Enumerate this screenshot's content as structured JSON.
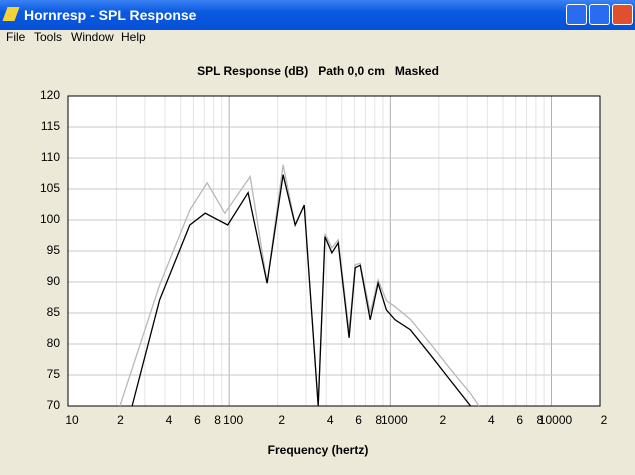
{
  "window": {
    "title": "Hornresp - SPL Response",
    "menu": [
      "File",
      "Tools",
      "Window",
      "Help"
    ]
  },
  "chart_data": {
    "type": "line",
    "title": "SPL Response (dB)   Path 0,0 cm   Masked",
    "x_label": "Frequency (hertz)",
    "log_x": true,
    "grid": true,
    "xlim": [
      10,
      20000
    ],
    "xticks": [
      10,
      {
        "value": 20,
        "label": "2"
      },
      {
        "value": 40,
        "label": "4"
      },
      {
        "value": 60,
        "label": "6"
      },
      {
        "value": 80,
        "label": "8"
      },
      100,
      {
        "value": 200,
        "label": "2"
      },
      {
        "value": 400,
        "label": "4"
      },
      {
        "value": 600,
        "label": "6"
      },
      {
        "value": 800,
        "label": "8"
      },
      1000,
      {
        "value": 2000,
        "label": "2"
      },
      {
        "value": 4000,
        "label": "4"
      },
      {
        "value": 6000,
        "label": "6"
      },
      {
        "value": 8000,
        "label": "8"
      },
      10000,
      {
        "value": 20000,
        "label": "2"
      }
    ],
    "x_minor_ticks": [
      30,
      50,
      70,
      90,
      300,
      500,
      700,
      900,
      3000,
      5000,
      7000,
      9000
    ],
    "ylim": [
      70,
      120
    ],
    "yticks": [
      70,
      75,
      80,
      85,
      90,
      95,
      100,
      105,
      110,
      115,
      120
    ],
    "series": [
      {
        "color": "#b8b8b8",
        "x": [
          21,
          37,
          57,
          73,
          94,
          135,
          172,
          216,
          257,
          292,
          357,
          393,
          434,
          475,
          555,
          605,
          650,
          750,
          840,
          945,
          1070,
          1330,
          1780,
          2350,
          3150,
          3550
        ],
        "values": [
          70,
          89.5,
          101.6,
          106,
          101.1,
          107,
          89.8,
          108.9,
          99.2,
          102.4,
          70,
          97.8,
          95.5,
          96.8,
          82,
          92.8,
          93,
          85,
          90.3,
          87,
          86,
          84,
          80,
          76,
          72,
          70
        ]
      },
      {
        "color": "#000000",
        "x": [
          25,
          37,
          57,
          71,
          98,
          131,
          172,
          216,
          257,
          292,
          357,
          393,
          434,
          475,
          555,
          605,
          650,
          750,
          840,
          945,
          1070,
          1330,
          1780,
          2350,
          3150
        ],
        "values": [
          70,
          87.1,
          99.2,
          101.1,
          99.2,
          104.4,
          89.8,
          107.3,
          99.2,
          102.4,
          70,
          97.3,
          94.7,
          96.3,
          81,
          92.3,
          92.7,
          83.9,
          89.8,
          85.5,
          83.9,
          82.3,
          78.2,
          74.2,
          70
        ]
      }
    ]
  }
}
